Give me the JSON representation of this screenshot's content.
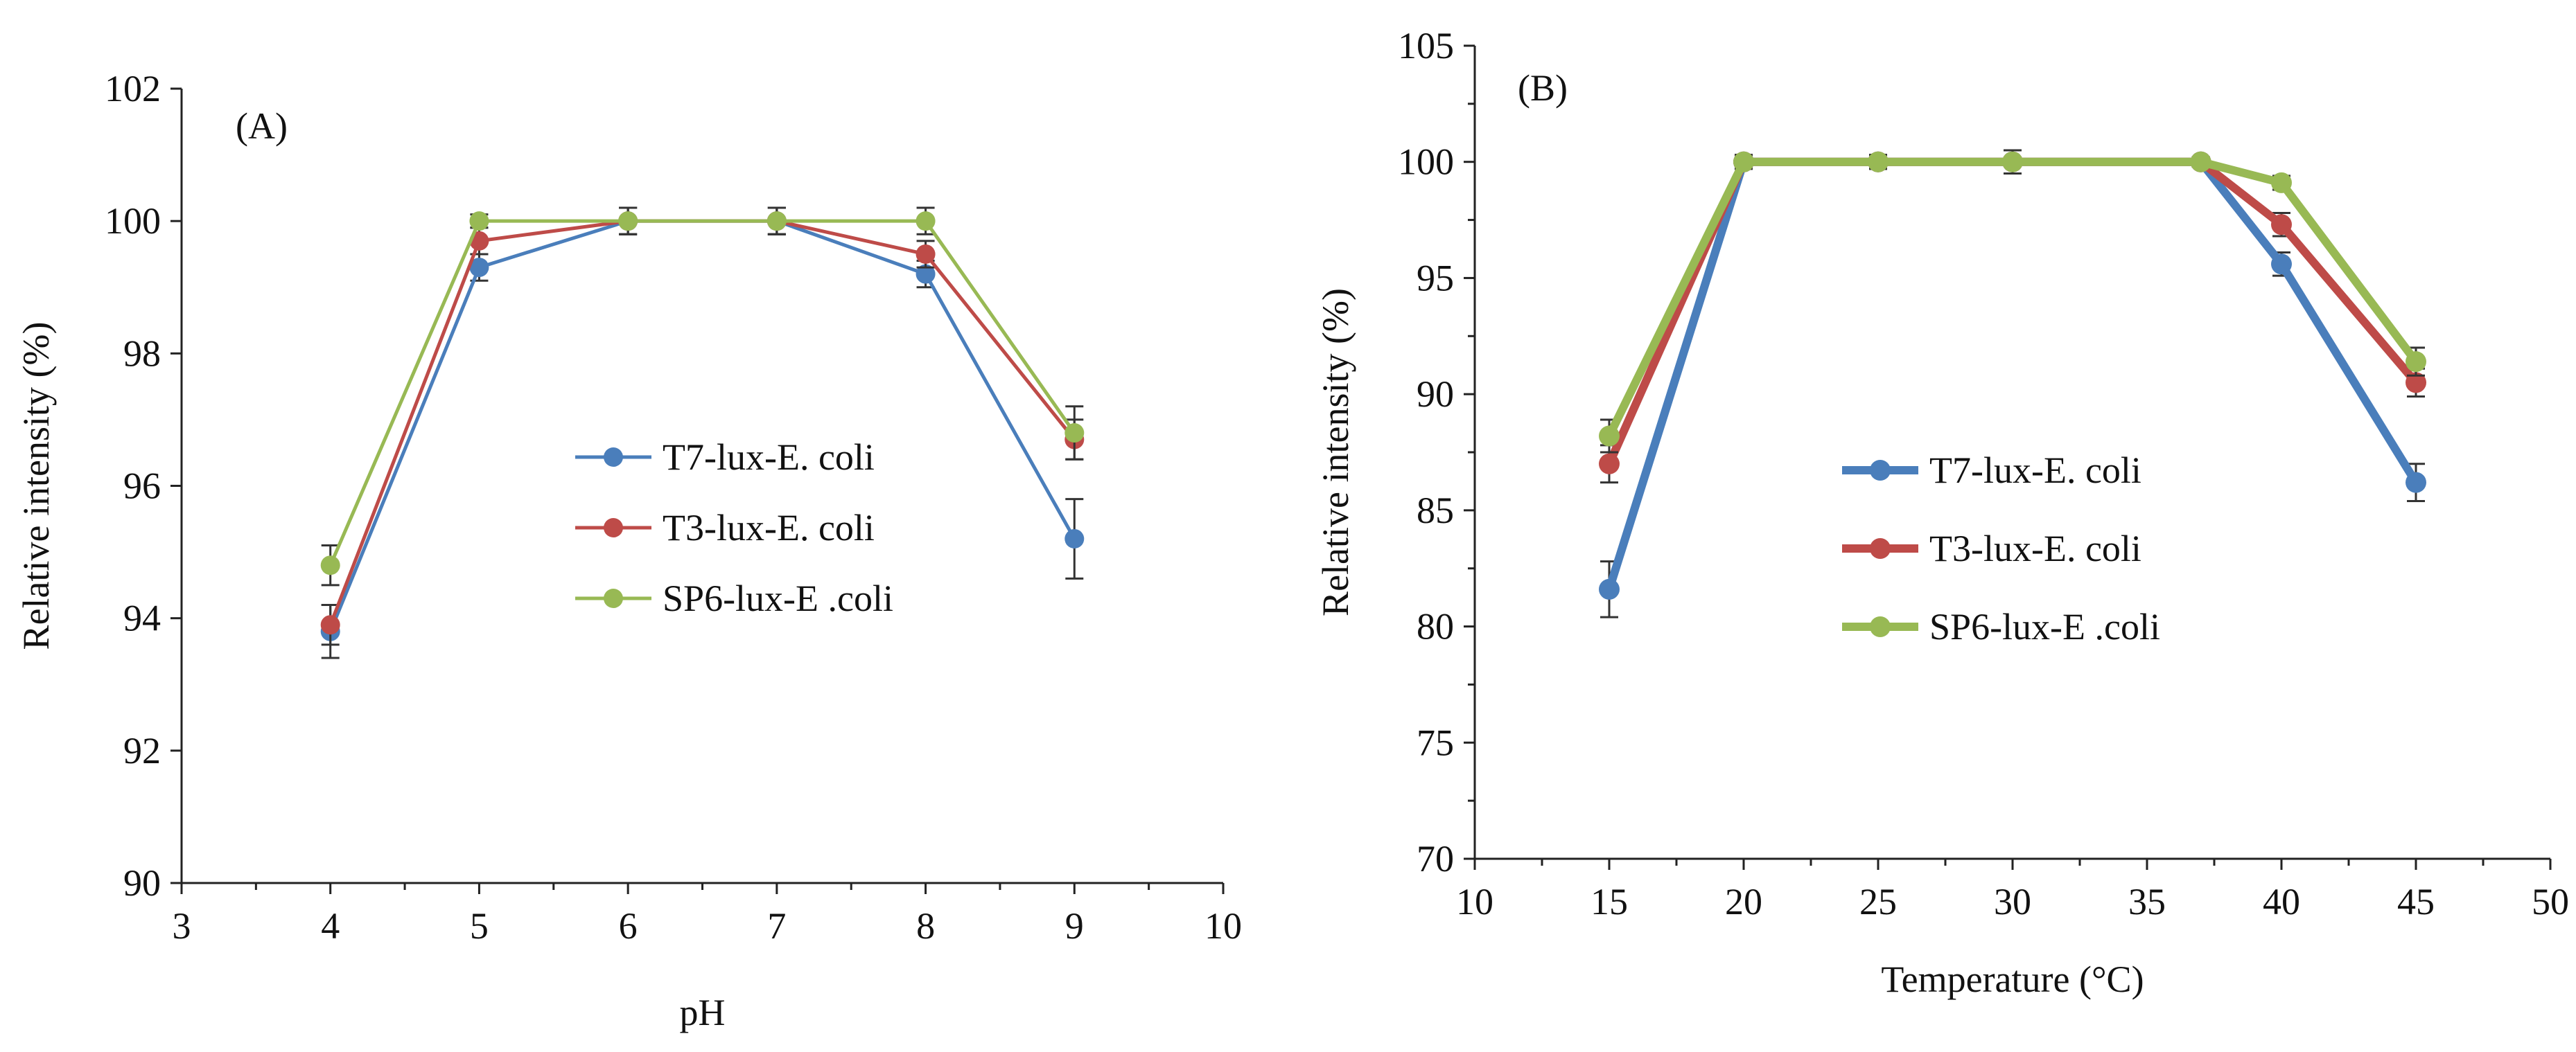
{
  "chart_data": [
    {
      "type": "line",
      "panel_label": "(A)",
      "xlabel": "pH",
      "ylabel": "Relative intensity (%)",
      "xlim": [
        3,
        10
      ],
      "ylim": [
        90,
        102
      ],
      "x_ticks": [
        3,
        4,
        5,
        6,
        7,
        8,
        9,
        10
      ],
      "y_ticks": [
        90,
        92,
        94,
        96,
        98,
        100,
        102
      ],
      "x_tick_labels": [
        "3",
        "4",
        "5",
        "6",
        "7",
        "8",
        "9",
        "10"
      ],
      "y_tick_labels": [
        "90",
        "92",
        "94",
        "96",
        "98",
        "100",
        "102"
      ],
      "x": [
        4,
        5,
        6,
        7,
        8,
        9
      ],
      "legend_position": "center",
      "series": [
        {
          "name": "T7-lux-E. coli",
          "color": "#4a7ebb",
          "values": [
            93.8,
            99.3,
            100,
            100,
            99.2,
            95.2
          ],
          "errors": [
            0.4,
            0.2,
            0.2,
            0.2,
            0.2,
            0.6
          ]
        },
        {
          "name": "T3-lux-E. coli",
          "color": "#be4b48",
          "values": [
            93.9,
            99.7,
            100,
            100,
            99.5,
            96.7
          ],
          "errors": [
            0.3,
            0.2,
            0.2,
            0.2,
            0.2,
            0.3
          ]
        },
        {
          "name": "SP6-lux-E .coli",
          "color": "#98b954",
          "values": [
            94.8,
            100,
            100,
            100,
            100,
            96.8
          ],
          "errors": [
            0.3,
            0.1,
            0.2,
            0.2,
            0.2,
            0.4
          ]
        }
      ]
    },
    {
      "type": "line",
      "panel_label": "(B)",
      "xlabel": "Temperature (°C)",
      "ylabel": "Relative intensity (%)",
      "xlim": [
        10,
        50
      ],
      "ylim": [
        70,
        105
      ],
      "x_ticks": [
        10,
        15,
        20,
        25,
        30,
        35,
        40,
        45,
        50
      ],
      "y_ticks": [
        70,
        75,
        80,
        85,
        90,
        95,
        100,
        105
      ],
      "x_tick_labels": [
        "10",
        "15",
        "20",
        "25",
        "30",
        "35",
        "40",
        "45",
        "50"
      ],
      "y_tick_labels": [
        "70",
        "75",
        "80",
        "85",
        "90",
        "95",
        "100",
        "105"
      ],
      "x": [
        15,
        20,
        25,
        30,
        37,
        40,
        45
      ],
      "legend_position": "center-left",
      "series": [
        {
          "name": "T7-lux-E. coli",
          "color": "#4a7ebb",
          "values": [
            81.6,
            100,
            100,
            100,
            100,
            95.6,
            86.2
          ],
          "errors": [
            1.2,
            0.3,
            0.3,
            0.5,
            0.2,
            0.5,
            0.8
          ]
        },
        {
          "name": "T3-lux-E. coli",
          "color": "#be4b48",
          "values": [
            87.0,
            100,
            100,
            100,
            100,
            97.3,
            90.5
          ],
          "errors": [
            0.8,
            0.3,
            0.3,
            0.5,
            0.2,
            0.5,
            0.6
          ]
        },
        {
          "name": "SP6-lux-E .coli",
          "color": "#98b954",
          "values": [
            88.2,
            100,
            100,
            100,
            100,
            99.1,
            91.4
          ],
          "errors": [
            0.7,
            0.2,
            0.3,
            0.5,
            0.2,
            0.3,
            0.6
          ]
        }
      ]
    }
  ]
}
